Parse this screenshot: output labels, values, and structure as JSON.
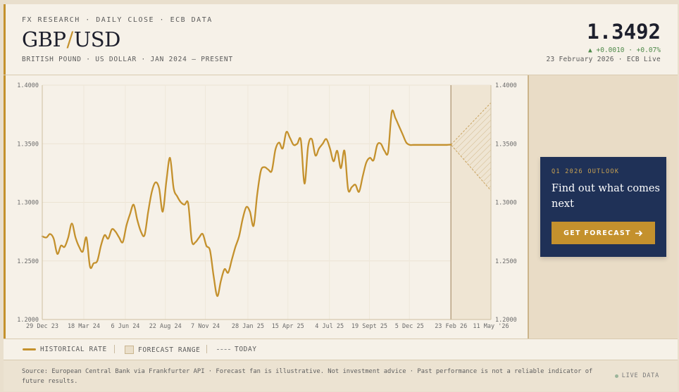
{
  "header": {
    "kicker": "FX RESEARCH  ·  DAILY CLOSE  ·  ECB DATA",
    "pair_base": "GBP",
    "pair_slash": "/",
    "pair_quote": "USD",
    "subline": "BRITISH POUND · US DOLLAR  ·  JAN 2024 – PRESENT",
    "price": "1.3492",
    "change": "▲ +0.0010 · +0.07%",
    "asof": "23 February 2026 · ECB Live"
  },
  "promo": {
    "kicker": "Q1 2026 OUTLOOK",
    "title": "Find out what comes next",
    "button_label": "GET FORECAST",
    "button_icon": "arrow-right-icon"
  },
  "legend": {
    "historical": "HISTORICAL RATE",
    "forecast": "FORECAST RANGE",
    "today": "TODAY"
  },
  "footer": {
    "source": "Source: European Central Bank via Frankfurter API  ·  Forecast fan is illustrative. Not investment advice  ·  Past performance is not a reliable indicator of future results.",
    "live": "LIVE DATA"
  },
  "colors": {
    "line": "#c4912d",
    "forecast_fill": "#efe5d3",
    "promo_bg": "#1f3157",
    "up": "#4f8a4a"
  },
  "chart_data": {
    "type": "line",
    "title": "",
    "xlabel": "",
    "ylabel": "",
    "ylim": [
      1.2,
      1.4
    ],
    "y_ticks": [
      "1.4000",
      "1.3500",
      "1.3000",
      "1.2500",
      "1.2000"
    ],
    "x_ticks": [
      "29 Dec 23",
      "18 Mar 24",
      "6 Jun 24",
      "22 Aug 24",
      "7 Nov 24",
      "28 Jan 25",
      "15 Apr 25",
      "4 Jul 25",
      "19 Sept 25",
      "5 Dec 25",
      "23 Feb 26",
      "11 May '26"
    ],
    "grid": true,
    "today": "2026-02-23",
    "series": [
      {
        "x": [
          "2023-12-29",
          "2024-01-06",
          "2024-01-13",
          "2024-01-20",
          "2024-01-27",
          "2024-02-03",
          "2024-02-10",
          "2024-02-17",
          "2024-02-24",
          "2024-03-02",
          "2024-03-09",
          "2024-03-16",
          "2024-03-23",
          "2024-03-30",
          "2024-04-06",
          "2024-04-13",
          "2024-04-20",
          "2024-04-27",
          "2024-05-04",
          "2024-05-11",
          "2024-05-18",
          "2024-05-25",
          "2024-06-01",
          "2024-06-08",
          "2024-06-15",
          "2024-06-22",
          "2024-06-29",
          "2024-07-06",
          "2024-07-13",
          "2024-07-20",
          "2024-07-27",
          "2024-08-03",
          "2024-08-10",
          "2024-08-17",
          "2024-08-24",
          "2024-08-31",
          "2024-09-07",
          "2024-09-14",
          "2024-09-21",
          "2024-09-28",
          "2024-10-05",
          "2024-10-12",
          "2024-10-19",
          "2024-10-26",
          "2024-11-02",
          "2024-11-09",
          "2024-11-16",
          "2024-11-23",
          "2024-11-30",
          "2024-12-07",
          "2024-12-14",
          "2024-12-21",
          "2024-12-28",
          "2025-01-04",
          "2025-01-11",
          "2025-01-18",
          "2025-01-25",
          "2025-02-01",
          "2025-02-08",
          "2025-02-15",
          "2025-02-22",
          "2025-03-01",
          "2025-03-08",
          "2025-03-15",
          "2025-03-22",
          "2025-03-29",
          "2025-04-05",
          "2025-04-12",
          "2025-04-19",
          "2025-04-26",
          "2025-05-03",
          "2025-05-10",
          "2025-05-17",
          "2025-05-24",
          "2025-05-31",
          "2025-06-07",
          "2025-06-14",
          "2025-06-21",
          "2025-06-28",
          "2025-07-05",
          "2025-07-12",
          "2025-07-19",
          "2025-07-26",
          "2025-08-02",
          "2025-08-09",
          "2025-08-16",
          "2025-08-23",
          "2025-08-30",
          "2025-09-06",
          "2025-09-13",
          "2025-09-20",
          "2025-09-27",
          "2025-10-04",
          "2025-10-11",
          "2025-10-18",
          "2025-10-25",
          "2025-11-01",
          "2025-11-08",
          "2025-11-15",
          "2025-11-22",
          "2025-11-29",
          "2025-12-06",
          "2025-12-13",
          "2025-12-20",
          "2025-12-27",
          "2026-01-03",
          "2026-01-10",
          "2026-01-17",
          "2026-01-24",
          "2026-01-31",
          "2026-02-07",
          "2026-02-14",
          "2026-02-23"
        ],
        "values": [
          1.271,
          1.27,
          1.273,
          1.269,
          1.256,
          1.263,
          1.262,
          1.27,
          1.282,
          1.27,
          1.262,
          1.258,
          1.27,
          1.245,
          1.248,
          1.25,
          1.263,
          1.272,
          1.269,
          1.277,
          1.275,
          1.27,
          1.266,
          1.28,
          1.29,
          1.298,
          1.285,
          1.275,
          1.272,
          1.292,
          1.309,
          1.317,
          1.312,
          1.292,
          1.318,
          1.338,
          1.312,
          1.305,
          1.3,
          1.298,
          1.299,
          1.267,
          1.266,
          1.27,
          1.273,
          1.263,
          1.259,
          1.237,
          1.22,
          1.233,
          1.243,
          1.24,
          1.251,
          1.262,
          1.271,
          1.286,
          1.296,
          1.292,
          1.28,
          1.307,
          1.327,
          1.33,
          1.328,
          1.327,
          1.345,
          1.351,
          1.346,
          1.36,
          1.355,
          1.349,
          1.35,
          1.353,
          1.316,
          1.348,
          1.354,
          1.34,
          1.346,
          1.35,
          1.354,
          1.346,
          1.335,
          1.344,
          1.329,
          1.344,
          1.311,
          1.313,
          1.315,
          1.309,
          1.322,
          1.334,
          1.338,
          1.336,
          1.349,
          1.35,
          1.344,
          1.343,
          1.377,
          1.372,
          1.365,
          1.358,
          1.351,
          1.349,
          1.349,
          1.349,
          1.349,
          1.349,
          1.349,
          1.349,
          1.349,
          1.349,
          1.349,
          1.349,
          1.3492
        ]
      }
    ],
    "forecast_range": {
      "from": "2026-02-23",
      "to": "2026-05-11",
      "start": 1.3492,
      "end_high": 1.385,
      "end_low": 1.31
    }
  }
}
